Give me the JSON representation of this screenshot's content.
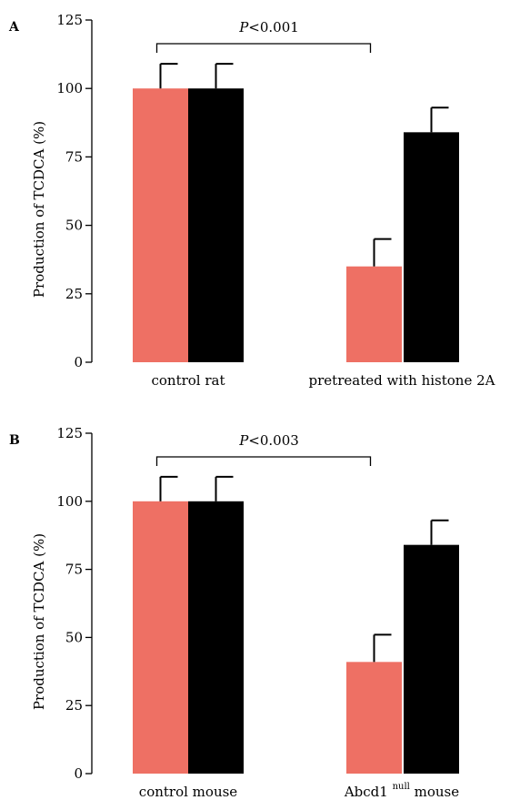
{
  "chart_data": [
    {
      "type": "bar",
      "panel_label": "A",
      "categories": [
        "control rat",
        "pretreated with histone 2A"
      ],
      "series": [
        {
          "color": "#ee7064",
          "values": [
            100,
            35
          ],
          "errors": [
            9,
            10
          ]
        },
        {
          "color": "#000000",
          "values": [
            100,
            84
          ],
          "errors": [
            9,
            9
          ]
        }
      ],
      "ylabel": "Production of TCDCA  (%)",
      "ylim": [
        0,
        125
      ],
      "yticks": [
        "0",
        "25",
        "50",
        "75",
        "100",
        "125"
      ],
      "annotation": {
        "prefix": "P",
        "text": "<0.001"
      },
      "grid": false,
      "legend": "none"
    },
    {
      "type": "bar",
      "panel_label": "B",
      "categories": [
        "control mouse",
        "Abcd1 null mouse"
      ],
      "category_parts": [
        {
          "main": "control mouse",
          "sup": "",
          "tail": ""
        },
        {
          "main": "Abcd1 ",
          "sup": "null",
          "tail": " mouse"
        }
      ],
      "series": [
        {
          "color": "#ee7064",
          "values": [
            100,
            41
          ],
          "errors": [
            9,
            10
          ]
        },
        {
          "color": "#000000",
          "values": [
            100,
            84
          ],
          "errors": [
            9,
            9
          ]
        }
      ],
      "ylabel": "Production of TCDCA (%)",
      "ylim": [
        0,
        125
      ],
      "yticks": [
        "0",
        "25",
        "50",
        "75",
        "100",
        "125"
      ],
      "annotation": {
        "prefix": "P",
        "text": "<0.003"
      },
      "grid": false,
      "legend": "none"
    }
  ]
}
